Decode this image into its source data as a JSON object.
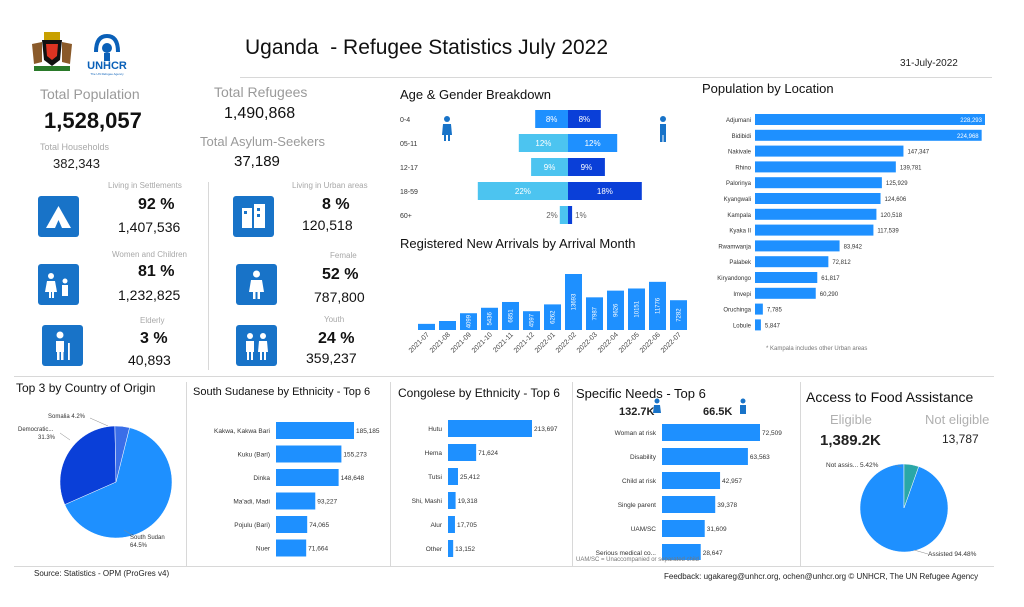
{
  "header": {
    "title": "Uganda  - Refugee Statistics July 2022",
    "date": "31-July-2022",
    "logo_text": "UNHCR",
    "logo_subtext": "The UN Refugee Agency"
  },
  "summary": {
    "total_population_label": "Total Population",
    "total_population": "1,528,057",
    "total_households_label": "Total Households",
    "total_households": "382,343",
    "total_refugees_label": "Total Refugees",
    "total_refugees": "1,490,868",
    "total_asylum_label": "Total Asylum-Seekers",
    "total_asylum": "37,189"
  },
  "stats": {
    "settlements": {
      "label": "Living in Settlements",
      "pct": "92 %",
      "value": "1,407,536"
    },
    "urban": {
      "label": "Living in Urban areas",
      "pct": "8 %",
      "value": "120,518"
    },
    "women_children": {
      "label": "Women and Children",
      "pct": "81 %",
      "value": "1,232,825"
    },
    "female": {
      "label": "Female",
      "pct": "52 %",
      "value": "787,800"
    },
    "elderly": {
      "label": "Elderly",
      "pct": "3 %",
      "value": "40,893"
    },
    "youth": {
      "label": "Youth",
      "pct": "24 %",
      "value": "359,237"
    }
  },
  "food": {
    "title": "Access to Food Assistance",
    "eligible_label": "Eligible",
    "eligible_value": "1,389.2K",
    "not_eligible_label": "Not eligible",
    "not_eligible_value": "13,787"
  },
  "specific_needs_header": {
    "female_total": "132.7K",
    "male_total": "66.5K"
  },
  "footer": {
    "source": "Source: Statistics - OPM (ProGres v4)",
    "feedback": "Feedback: ugakareg@unhcr.org, ochen@unhcr.org © UNHCR, The UN Refugee Agency",
    "uam_note": "UAM/SC = Unaccompanied or separated child",
    "kampala_note": "* Kampala includes other Urban areas"
  },
  "colors": {
    "primary": "#1873c8",
    "bright": "#1e90ff",
    "dark": "#0a3fd8",
    "light": "#4cc4f0",
    "teal": "#2aa7a7"
  },
  "chart_data": [
    {
      "type": "bar",
      "title": "Age & Gender Breakdown",
      "categories": [
        "0-4",
        "05-11",
        "12-17",
        "18-59",
        "60+"
      ],
      "series": [
        {
          "values": [
            8,
            12,
            9,
            22,
            2
          ],
          "labels": [
            "8%",
            "12%",
            "9%",
            "22%",
            "2%"
          ]
        },
        {
          "values": [
            8,
            12,
            9,
            18,
            1
          ],
          "labels": [
            "8%",
            "12%",
            "9%",
            "18%",
            "1%"
          ]
        }
      ]
    },
    {
      "type": "bar",
      "title": "Registered New Arrivals by Arrival Month",
      "categories": [
        "2021-07",
        "2021-08",
        "2021-09",
        "2021-10",
        "2021-11",
        "2021-12",
        "2022-01",
        "2022-02",
        "2022-03",
        "2022-04",
        "2022-05",
        "2022-06",
        "2022-07"
      ],
      "values": [
        1500,
        2200,
        4099,
        5436,
        6851,
        4597,
        6262,
        13693,
        7987,
        9626,
        10151,
        11776,
        7282
      ],
      "labels": [
        "",
        "",
        "4099",
        "5436",
        "6851",
        "4597",
        "6262",
        "13693",
        "7987",
        "9626",
        "10151",
        "11776",
        "7282"
      ]
    },
    {
      "type": "bar",
      "title": "Population by Location",
      "categories": [
        "Adjumani",
        "Bidibidi",
        "Nakivale",
        "Rhino",
        "Palorinya",
        "Kyangwali",
        "Kampala",
        "Kyaka II",
        "Rwamwanja",
        "Palabek",
        "Kiryandongo",
        "Imvepi",
        "Oruchinga",
        "Lobule"
      ],
      "values": [
        228293,
        224968,
        147347,
        139781,
        125929,
        124606,
        120518,
        117539,
        83942,
        72812,
        61817,
        60290,
        7785,
        5847
      ],
      "labels": [
        "228,293",
        "224,968",
        "147,347",
        "139,781",
        "125,929",
        "124,606",
        "120,518",
        "117,539",
        "83,942",
        "72,812",
        "61,817",
        "60,290",
        "7,785",
        "5,847"
      ]
    },
    {
      "type": "pie",
      "title": "Top 3 by Country of Origin",
      "categories": [
        "South Sudan",
        "Democratic...",
        "Somalia"
      ],
      "values": [
        64.5,
        31.3,
        4.2
      ],
      "labels": [
        "South Sudan\n64.5%",
        "Democratic...\n31.3%",
        "Somalia 4.2%"
      ]
    },
    {
      "type": "bar",
      "title": "South Sudanese by Ethnicity - Top 6",
      "categories": [
        "Kakwa, Kakwa Bari",
        "Kuku (Bari)",
        "Dinka",
        "Ma'adi, Madi",
        "Pojulu (Bari)",
        "Nuer"
      ],
      "values": [
        185185,
        155273,
        148648,
        93227,
        74065,
        71664
      ],
      "labels": [
        "185,185",
        "155,273",
        "148,648",
        "93,227",
        "74,065",
        "71,664"
      ]
    },
    {
      "type": "bar",
      "title": "Congolese by Ethnicity - Top 6",
      "categories": [
        "Hutu",
        "Hema",
        "Tutsi",
        "Shi, Mashi",
        "Alur",
        "Other"
      ],
      "values": [
        213697,
        71624,
        25412,
        19318,
        17705,
        13152
      ],
      "labels": [
        "213,697",
        "71,624",
        "25,412",
        "19,318",
        "17,705",
        "13,152"
      ]
    },
    {
      "type": "bar",
      "title": "Specific Needs - Top 6",
      "categories": [
        "Woman at risk",
        "Disability",
        "Child at risk",
        "Single parent",
        "UAM/SC",
        "Serious medical co..."
      ],
      "values": [
        72509,
        63563,
        42957,
        39378,
        31609,
        28647
      ],
      "labels": [
        "72,509",
        "63,563",
        "42,957",
        "39,378",
        "31,609",
        "28,647"
      ]
    },
    {
      "type": "pie",
      "categories": [
        "Assisted",
        "Not assis..."
      ],
      "values": [
        94.48,
        5.42
      ],
      "labels": [
        "Assisted 94.48%",
        "Not assis... 5.42%"
      ]
    }
  ]
}
